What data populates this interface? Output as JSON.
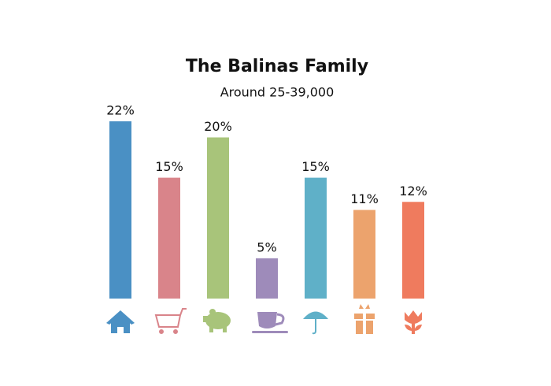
{
  "chart_data": {
    "type": "bar",
    "title": "The Balinas Family",
    "subtitle": "Around 25-39,000",
    "categories": [
      null,
      null,
      null,
      null,
      null,
      null,
      null
    ],
    "values": [
      22,
      15,
      20,
      5,
      15,
      11,
      12
    ],
    "value_labels": [
      "22%",
      "15%",
      "20%",
      "5%",
      "15%",
      "11%",
      "12%"
    ],
    "colors": [
      "#4a90c4",
      "#d9848a",
      "#a8c47a",
      "#9e8bba",
      "#5fb0c8",
      "#eca36d",
      "#ef7b5e"
    ]
  }
}
